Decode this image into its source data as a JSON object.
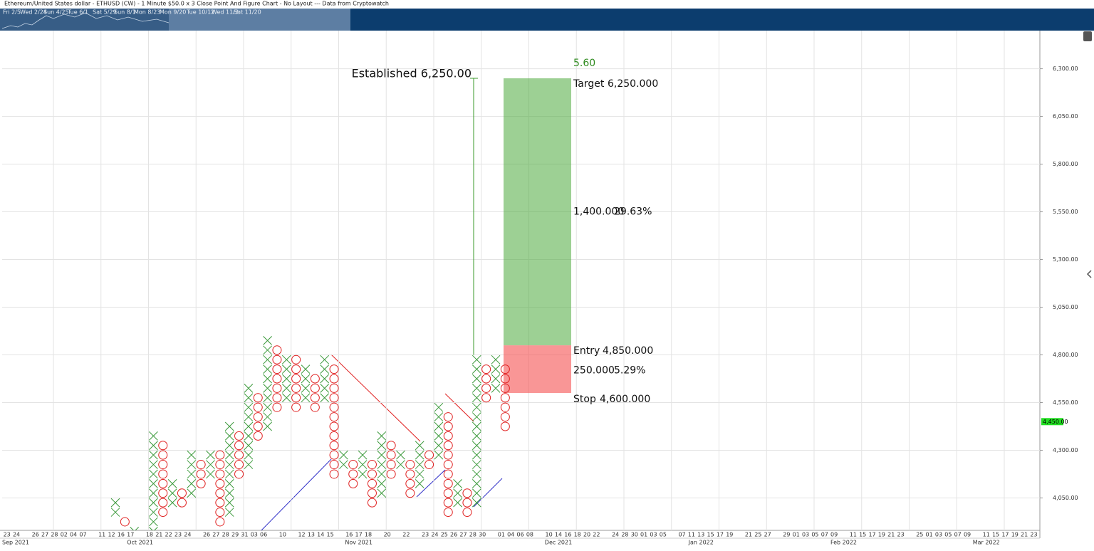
{
  "chart_data": {
    "type": "point-and-figure",
    "title": "Ethereum/United States dollar - ETHUSD (CW) - 1 Minute $50.0 x 3 Close Point And Figure Chart - No Layout --- Data from Cryptowatch",
    "navigator_labels": [
      "Fri 2/5",
      "Wed 2/24",
      "Sun 4/25",
      "Tue 6/1",
      "Sat 5/29",
      "Sun 8/1",
      "Mon 8/23",
      "Mon 9/20",
      "Tue 10/12",
      "Wed 11/3",
      "Sat 11/20"
    ],
    "box_size": 50,
    "x_color": "#3c9a3c",
    "o_color": "#e02020",
    "ylim": [
      3880,
      6500
    ],
    "yticks": [
      {
        "value": 4050,
        "label": "4,050.00"
      },
      {
        "value": 4300,
        "label": "4,300.00"
      },
      {
        "value": 4550,
        "label": "4,550.00"
      },
      {
        "value": 4800,
        "label": "4,800.00"
      },
      {
        "value": 5050,
        "label": "5,050.00"
      },
      {
        "value": 5300,
        "label": "5,300.00"
      },
      {
        "value": 5550,
        "label": "5,550.00"
      },
      {
        "value": 5800,
        "label": "5,800.00"
      },
      {
        "value": 6050,
        "label": "6,050.00"
      },
      {
        "value": 6300,
        "label": "6,300.00"
      }
    ],
    "grid": true,
    "categories": [
      "23",
      "24",
      null,
      "26",
      "27",
      "28",
      "02",
      "04",
      "07",
      null,
      "11",
      "12",
      "16",
      "17",
      null,
      "18",
      "21",
      "22",
      "23",
      "24",
      null,
      "26",
      "27",
      "28",
      "29",
      "31",
      "03",
      "06",
      null,
      "10",
      null,
      "12",
      "13",
      "14",
      "15",
      null,
      "16",
      "17",
      "18",
      null,
      "20",
      null,
      "22",
      null,
      "23",
      "24",
      "25",
      "26",
      "27",
      "28",
      "30",
      null,
      "01",
      "04",
      "06",
      "08",
      null,
      "10",
      "14",
      "16",
      "18",
      "20",
      "22",
      null,
      "24",
      "28",
      "30",
      "01",
      "03",
      "05",
      null,
      "07",
      "11",
      "13",
      "15",
      "17",
      "19",
      null,
      "21",
      "25",
      "27",
      null,
      "29",
      "01",
      "03",
      "05",
      "07",
      "09",
      null,
      "11",
      "15",
      "17",
      "19",
      "21",
      "23",
      null,
      "25",
      "01",
      "03",
      "05",
      "07",
      "09",
      null,
      "11",
      "15",
      "17",
      "19",
      "21",
      "23"
    ],
    "months": [
      "Sep 2021",
      null,
      null,
      null,
      null,
      null,
      null,
      null,
      null,
      null,
      null,
      null,
      null,
      null,
      "Oct 2021",
      null,
      null,
      null,
      null,
      null,
      null,
      null,
      null,
      null,
      null,
      null,
      null,
      null,
      null,
      null,
      null,
      null,
      null,
      null,
      null,
      null,
      null,
      "Nov 2021",
      null,
      null,
      null,
      null,
      null,
      null,
      null,
      null,
      null,
      null,
      null,
      null,
      null,
      null,
      null,
      null,
      null,
      null,
      null,
      null,
      "Dec 2021",
      null,
      null,
      null,
      null,
      null,
      null,
      null,
      null,
      null,
      null,
      null,
      null,
      null,
      null,
      "Jan 2022",
      null,
      null,
      null,
      null,
      null,
      null,
      null,
      null,
      null,
      null,
      null,
      null,
      null,
      null,
      "Feb 2022",
      null,
      null,
      null,
      null,
      null,
      null,
      null,
      null,
      null,
      null,
      null,
      null,
      null,
      null,
      "Mar 2022",
      null,
      null,
      null,
      null,
      null
    ],
    "columns": [
      {
        "kind": "X",
        "low": 3950,
        "high": 4050
      },
      {
        "kind": "O",
        "low": 3900,
        "high": 3950
      },
      {
        "kind": "X",
        "low": 3850,
        "high": 3900
      },
      null,
      {
        "kind": "X",
        "low": 3850,
        "high": 4400
      },
      {
        "kind": "O",
        "low": 3950,
        "high": 4350
      },
      {
        "kind": "X",
        "low": 4000,
        "high": 4150
      },
      {
        "kind": "O",
        "low": 4000,
        "high": 4100
      },
      {
        "kind": "X",
        "low": 4050,
        "high": 4300
      },
      {
        "kind": "O",
        "low": 4100,
        "high": 4250
      },
      {
        "kind": "X",
        "low": 4150,
        "high": 4300
      },
      {
        "kind": "O",
        "low": 3900,
        "high": 4300
      },
      {
        "kind": "X",
        "low": 3950,
        "high": 4450
      },
      {
        "kind": "O",
        "low": 4150,
        "high": 4400
      },
      {
        "kind": "X",
        "low": 4200,
        "high": 4650
      },
      {
        "kind": "O",
        "low": 4350,
        "high": 4600
      },
      {
        "kind": "X",
        "low": 4400,
        "high": 4900
      },
      {
        "kind": "O",
        "low": 4500,
        "high": 4850
      },
      {
        "kind": "X",
        "low": 4550,
        "high": 4800
      },
      {
        "kind": "O",
        "low": 4500,
        "high": 4800
      },
      {
        "kind": "X",
        "low": 4550,
        "high": 4750
      },
      {
        "kind": "O",
        "low": 4500,
        "high": 4700
      },
      {
        "kind": "X",
        "low": 4550,
        "high": 4800
      },
      {
        "kind": "O",
        "low": 4150,
        "high": 4750
      },
      {
        "kind": "X",
        "low": 4200,
        "high": 4300
      },
      {
        "kind": "O",
        "low": 4100,
        "high": 4250
      },
      {
        "kind": "X",
        "low": 4150,
        "high": 4300
      },
      {
        "kind": "O",
        "low": 4000,
        "high": 4250
      },
      {
        "kind": "X",
        "low": 4050,
        "high": 4400
      },
      {
        "kind": "O",
        "low": 4150,
        "high": 4350
      },
      {
        "kind": "X",
        "low": 4200,
        "high": 4300
      },
      {
        "kind": "O",
        "low": 4050,
        "high": 4250
      },
      {
        "kind": "X",
        "low": 4100,
        "high": 4350
      },
      {
        "kind": "O",
        "low": 4200,
        "high": 4300
      },
      {
        "kind": "X",
        "low": 4250,
        "high": 4550
      },
      {
        "kind": "O",
        "low": 3950,
        "high": 4500
      },
      {
        "kind": "X",
        "low": 4000,
        "high": 4150
      },
      {
        "kind": "O",
        "low": 3950,
        "high": 4100
      },
      {
        "kind": "X",
        "low": 4000,
        "high": 4800
      },
      {
        "kind": "O",
        "low": 4550,
        "high": 4750
      },
      {
        "kind": "X",
        "low": 4600,
        "high": 4800
      },
      {
        "kind": "O",
        "low": 4400,
        "high": 4750
      }
    ],
    "established": {
      "text": "Established 6,250.00",
      "value": 6250,
      "from": 4800
    },
    "position": {
      "ratio": {
        "value": 5.6,
        "label": "5.60"
      },
      "target": {
        "label": "Target",
        "value": 6250,
        "value_label": "6,250.000"
      },
      "reward": {
        "value": 1400,
        "value_label": "1,400.000",
        "percent": 29.63,
        "percent_label": "29.63%"
      },
      "entry": {
        "label": "Entry",
        "value": 4850,
        "value_label": "4,850.000"
      },
      "risk": {
        "value": 250,
        "value_label": "250.000",
        "percent": 5.29,
        "percent_label": "5.29%"
      },
      "stop": {
        "label": "Stop",
        "value": 4600,
        "value_label": "4,600.000"
      }
    },
    "last_price": {
      "value": 4450,
      "label": "4,450.00"
    }
  }
}
